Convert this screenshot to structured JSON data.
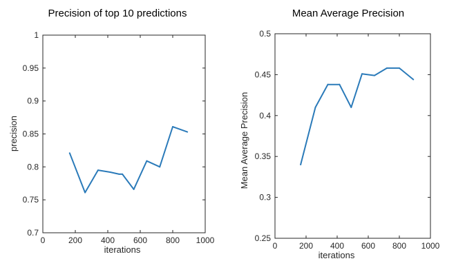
{
  "chart_data": [
    {
      "type": "line",
      "title": "Precision of top 10 predictions",
      "xlabel": "iterations",
      "ylabel": "precision",
      "xlim": [
        0,
        1000
      ],
      "ylim": [
        0.7,
        1
      ],
      "x_ticks": [
        "0",
        "200",
        "400",
        "600",
        "800",
        "1000"
      ],
      "y_ticks": [
        "0.7",
        "0.75",
        "0.8",
        "0.85",
        "0.9",
        "0.95",
        "1"
      ],
      "grid": false,
      "series": [
        {
          "color": "#2a7ab9",
          "x": [
            165,
            260,
            340,
            415,
            470,
            490,
            560,
            640,
            720,
            800,
            890
          ],
          "y": [
            0.821,
            0.761,
            0.795,
            0.792,
            0.789,
            0.789,
            0.766,
            0.809,
            0.8,
            0.861,
            0.853
          ]
        }
      ]
    },
    {
      "type": "line",
      "title": "Mean Average Precision",
      "xlabel": "iterations",
      "ylabel": "Mean Average Precision",
      "xlim": [
        0,
        1000
      ],
      "ylim": [
        0.25,
        0.5
      ],
      "x_ticks": [
        "0",
        "200",
        "400",
        "600",
        "800",
        "1000"
      ],
      "y_ticks": [
        "0.25",
        "0.3",
        "0.35",
        "0.4",
        "0.45",
        "0.5"
      ],
      "grid": false,
      "series": [
        {
          "color": "#2a7ab9",
          "x": [
            165,
            260,
            340,
            415,
            490,
            560,
            640,
            720,
            800,
            890
          ],
          "y": [
            0.34,
            0.41,
            0.438,
            0.438,
            0.41,
            0.451,
            0.449,
            0.458,
            0.458,
            0.444
          ]
        }
      ]
    }
  ]
}
